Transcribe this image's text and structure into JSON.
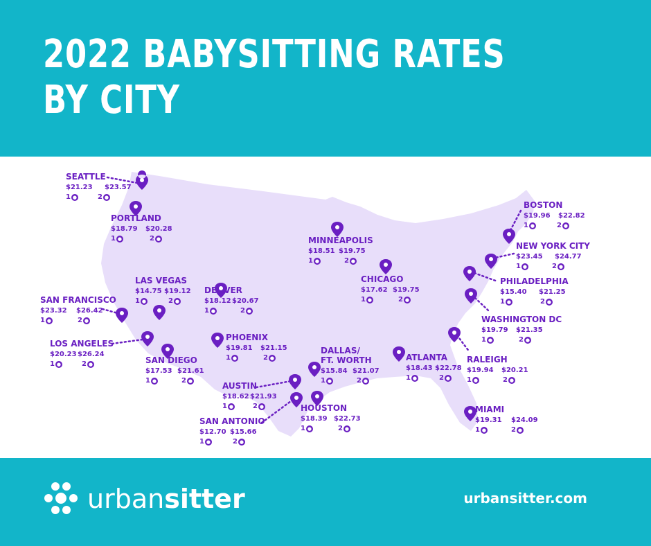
{
  "header": {
    "title_line1": "2022 BABYSITTING RATES",
    "title_line2": "BY CITY"
  },
  "footer": {
    "brand_regular": "urban",
    "brand_bold": "sitter",
    "website": "urbansitter.com"
  },
  "colors": {
    "teal": "#12b5c9",
    "purple": "#6a1fc2",
    "map_fill": "#e8defa"
  },
  "kids_labels": {
    "one": "1",
    "two": "2"
  },
  "cities": [
    {
      "name": "SEATTLE",
      "one_child": "$21.23",
      "two_children": "$23.57"
    },
    {
      "name": "PORTLAND",
      "one_child": "$18.79",
      "two_children": "$20.28"
    },
    {
      "name": "MINNEAPOLIS",
      "one_child": "$18.51",
      "two_children": "$19.75"
    },
    {
      "name": "BOSTON",
      "one_child": "$19.96",
      "two_children": "$22.82"
    },
    {
      "name": "NEW YORK CITY",
      "one_child": "$23.45",
      "two_children": "$24.77"
    },
    {
      "name": "CHICAGO",
      "one_child": "$17.62",
      "two_children": "$19.75"
    },
    {
      "name": "PHILADELPHIA",
      "one_child": "$15.40",
      "two_children": "$21.25"
    },
    {
      "name": "LAS VEGAS",
      "one_child": "$14.75",
      "two_children": "$19.12"
    },
    {
      "name": "DENVER",
      "one_child": "$18.12",
      "two_children": "$20.67"
    },
    {
      "name": "SAN FRANCISCO",
      "one_child": "$23.32",
      "two_children": "$26.42"
    },
    {
      "name": "WASHINGTON DC",
      "one_child": "$19.79",
      "two_children": "$21.35"
    },
    {
      "name": "PHOENIX",
      "one_child": "$19.81",
      "two_children": "$21.15"
    },
    {
      "name": "LOS ANGELES",
      "one_child": "$20.23",
      "two_children": "$26.24"
    },
    {
      "name": "DALLAS/",
      "name2": "FT. WORTH",
      "one_child": "$15.84",
      "two_children": "$21.07"
    },
    {
      "name": "ATLANTA",
      "one_child": "$18.43",
      "two_children": "$22.78"
    },
    {
      "name": "RALEIGH",
      "one_child": "$19.94",
      "two_children": "$20.21"
    },
    {
      "name": "SAN DIEGO",
      "one_child": "$17.53",
      "two_children": "$21.61"
    },
    {
      "name": "AUSTIN",
      "one_child": "$18.62",
      "two_children": "$21.93"
    },
    {
      "name": "HOUSTON",
      "one_child": "$18.39",
      "two_children": "$22.73"
    },
    {
      "name": "MIAMI",
      "one_child": "$19.31",
      "two_children": "$24.09"
    },
    {
      "name": "SAN ANTONIO",
      "one_child": "$12.70",
      "two_children": "$15.66"
    }
  ]
}
